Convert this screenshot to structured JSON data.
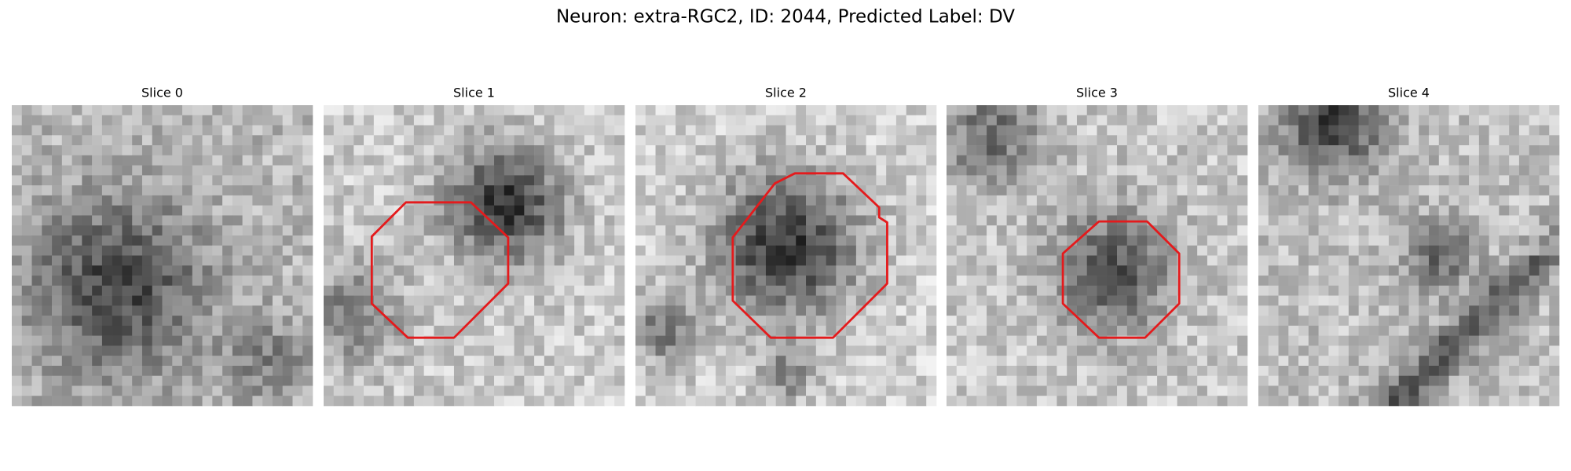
{
  "title": "Neuron: extra-RGC2, ID: 2044, Predicted Label: DV",
  "panels": [
    {
      "title": "Slice 0"
    },
    {
      "title": "Slice 1"
    },
    {
      "title": "Slice 2"
    },
    {
      "title": "Slice 3"
    },
    {
      "title": "Slice 4"
    }
  ]
}
